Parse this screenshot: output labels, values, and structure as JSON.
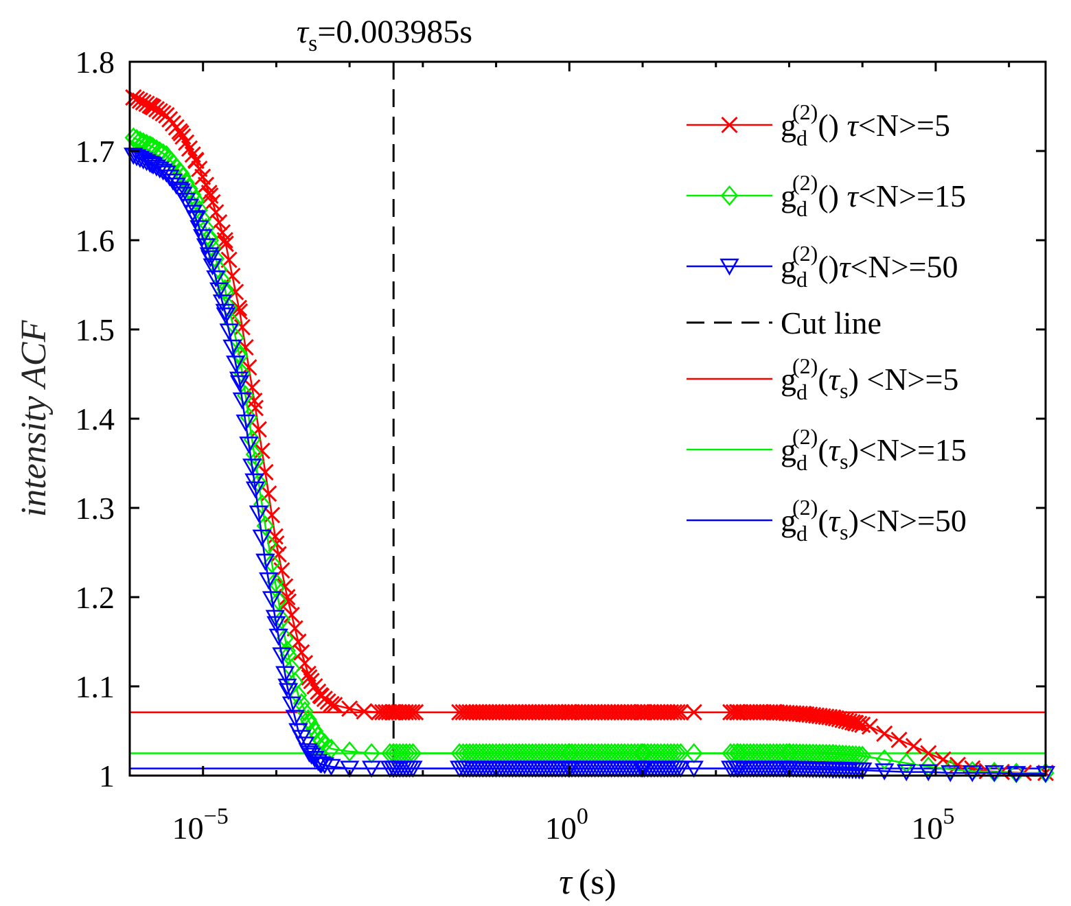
{
  "chart_data": {
    "type": "line",
    "title_prefix": "τ",
    "title_sub": "s",
    "title_value": "=0.003985s",
    "xlabel_symbol": "τ",
    "xlabel_unit": "(s)",
    "ylabel": "intensity ACF",
    "x_scale": "log10",
    "xlim_exp": [
      -6,
      6.5
    ],
    "ylim": [
      1,
      1.8
    ],
    "x_ticks": [
      {
        "base": "10",
        "exp": "−5",
        "value_exp": -5
      },
      {
        "base": "10",
        "exp": "0",
        "value_exp": 0
      },
      {
        "base": "10",
        "exp": "5",
        "value_exp": 5
      }
    ],
    "y_ticks": [
      {
        "label": "1",
        "value": 1.0
      },
      {
        "label": "1.1",
        "value": 1.1
      },
      {
        "label": "1.2",
        "value": 1.2
      },
      {
        "label": "1.3",
        "value": 1.3
      },
      {
        "label": "1.4",
        "value": 1.4
      },
      {
        "label": "1.5",
        "value": 1.5
      },
      {
        "label": "1.6",
        "value": 1.6
      },
      {
        "label": "1.7",
        "value": 1.7
      },
      {
        "label": "1.8",
        "value": 1.8
      }
    ],
    "cut_line_x": 0.003985,
    "legend_position": "top-right",
    "series": [
      {
        "name": "g_d^(2)(τ) <N>=5",
        "legend": {
          "pre": "(τ) ",
          "post": "<N>=5",
          "tau_sub": ""
        },
        "kind": "markers",
        "marker": "x",
        "color": "#ff0000",
        "points": [
          [
            -5.95,
            1.76
          ],
          [
            -5.7,
            1.75
          ],
          [
            -5.5,
            1.74
          ],
          [
            -5.3,
            1.72
          ],
          [
            -5.1,
            1.69
          ],
          [
            -4.9,
            1.65
          ],
          [
            -4.7,
            1.6
          ],
          [
            -4.5,
            1.52
          ],
          [
            -4.3,
            1.42
          ],
          [
            -4.15,
            1.34
          ],
          [
            -4.0,
            1.26
          ],
          [
            -3.85,
            1.2
          ],
          [
            -3.7,
            1.15
          ],
          [
            -3.55,
            1.11
          ],
          [
            -3.4,
            1.09
          ],
          [
            -3.25,
            1.08
          ],
          [
            -3.0,
            1.075
          ],
          [
            -2.8,
            1.072
          ],
          [
            -2.6,
            1.071
          ],
          [
            -2.4,
            1.071
          ],
          [
            -1.5,
            1.071
          ],
          [
            0,
            1.071
          ],
          [
            1.0,
            1.071
          ],
          [
            1.7,
            1.071
          ],
          [
            2.3,
            1.071
          ],
          [
            2.8,
            1.071
          ],
          [
            3.2,
            1.069
          ],
          [
            3.6,
            1.065
          ],
          [
            3.9,
            1.059
          ],
          [
            4.1,
            1.055
          ],
          [
            4.3,
            1.047
          ],
          [
            4.5,
            1.04
          ],
          [
            4.7,
            1.033
          ],
          [
            4.9,
            1.025
          ],
          [
            5.1,
            1.018
          ],
          [
            5.3,
            1.012
          ],
          [
            5.5,
            1.008
          ],
          [
            5.7,
            1.005
          ],
          [
            5.9,
            1.004
          ],
          [
            6.2,
            1.003
          ],
          [
            6.5,
            1.003
          ]
        ],
        "dense_ranges": [
          [
            -5.95,
            -3.2
          ],
          [
            -2.55,
            -2.1
          ],
          [
            -1.45,
            1.55
          ],
          [
            2.2,
            4.0
          ]
        ]
      },
      {
        "name": "g_d^(2)(τ) <N>=15",
        "legend": {
          "pre": "(τ) ",
          "post": "<N>=15",
          "tau_sub": ""
        },
        "kind": "markers",
        "marker": "diamond",
        "color": "#00ee00",
        "points": [
          [
            -5.95,
            1.715
          ],
          [
            -5.7,
            1.705
          ],
          [
            -5.5,
            1.695
          ],
          [
            -5.3,
            1.675
          ],
          [
            -5.1,
            1.645
          ],
          [
            -4.9,
            1.6
          ],
          [
            -4.7,
            1.545
          ],
          [
            -4.5,
            1.47
          ],
          [
            -4.3,
            1.36
          ],
          [
            -4.15,
            1.28
          ],
          [
            -4.0,
            1.21
          ],
          [
            -3.85,
            1.14
          ],
          [
            -3.7,
            1.09
          ],
          [
            -3.55,
            1.06
          ],
          [
            -3.4,
            1.04
          ],
          [
            -3.25,
            1.03
          ],
          [
            -3.0,
            1.027
          ],
          [
            -2.7,
            1.025
          ],
          [
            -2.4,
            1.025
          ],
          [
            -1.5,
            1.025
          ],
          [
            0,
            1.025
          ],
          [
            1.0,
            1.025
          ],
          [
            1.7,
            1.025
          ],
          [
            2.3,
            1.025
          ],
          [
            3.0,
            1.025
          ],
          [
            3.6,
            1.024
          ],
          [
            4.0,
            1.022
          ],
          [
            4.3,
            1.018
          ],
          [
            4.6,
            1.014
          ],
          [
            4.9,
            1.01
          ],
          [
            5.2,
            1.007
          ],
          [
            5.5,
            1.005
          ],
          [
            5.8,
            1.004
          ],
          [
            6.1,
            1.003
          ],
          [
            6.5,
            1.003
          ]
        ],
        "dense_ranges": [
          [
            -5.95,
            -3.3
          ],
          [
            -2.45,
            -2.1
          ],
          [
            -1.45,
            1.55
          ],
          [
            2.2,
            4.0
          ]
        ]
      },
      {
        "name": "g_d^(2)(τ)<N>=50",
        "legend": {
          "pre": "(τ)",
          "post": "<N>=50",
          "tau_sub": ""
        },
        "kind": "markers",
        "marker": "triangle-down",
        "color": "#0000ff",
        "points": [
          [
            -5.95,
            1.695
          ],
          [
            -5.7,
            1.685
          ],
          [
            -5.5,
            1.675
          ],
          [
            -5.3,
            1.655
          ],
          [
            -5.1,
            1.625
          ],
          [
            -4.9,
            1.58
          ],
          [
            -4.7,
            1.52
          ],
          [
            -4.5,
            1.44
          ],
          [
            -4.3,
            1.33
          ],
          [
            -4.15,
            1.24
          ],
          [
            -4.0,
            1.17
          ],
          [
            -3.85,
            1.1
          ],
          [
            -3.7,
            1.05
          ],
          [
            -3.55,
            1.025
          ],
          [
            -3.4,
            1.013
          ],
          [
            -3.25,
            1.01
          ],
          [
            -3.0,
            1.008
          ],
          [
            -2.7,
            1.008
          ],
          [
            -2.4,
            1.008
          ],
          [
            -1.5,
            1.008
          ],
          [
            0,
            1.008
          ],
          [
            1.0,
            1.008
          ],
          [
            1.7,
            1.008
          ],
          [
            2.3,
            1.008
          ],
          [
            3.0,
            1.008
          ],
          [
            3.6,
            1.007
          ],
          [
            4.0,
            1.006
          ],
          [
            4.3,
            1.005
          ],
          [
            4.6,
            1.004
          ],
          [
            4.9,
            1.004
          ],
          [
            5.2,
            1.003
          ],
          [
            5.5,
            1.003
          ],
          [
            5.8,
            1.003
          ],
          [
            6.1,
            1.002
          ],
          [
            6.5,
            1.002
          ]
        ],
        "dense_ranges": [
          [
            -5.95,
            -3.3
          ],
          [
            -2.45,
            -2.1
          ],
          [
            -1.45,
            1.55
          ],
          [
            2.2,
            4.0
          ]
        ]
      },
      {
        "name": "Cut line",
        "legend": {
          "text": "Cut line"
        },
        "kind": "dashed-vertical",
        "color": "#000000"
      },
      {
        "name": "g_d^(2)(τ_s) <N>=5",
        "legend": {
          "pre": "(τ",
          "post": ") <N>=5",
          "tau_sub": "s"
        },
        "kind": "hline",
        "value": 1.071,
        "color": "#ff0000"
      },
      {
        "name": "g_d^(2)(τ_s)<N>=15",
        "legend": {
          "pre": "(τ",
          "post": ")<N>=15",
          "tau_sub": "s"
        },
        "kind": "hline",
        "value": 1.025,
        "color": "#00ee00"
      },
      {
        "name": "g_d^(2)(τ_s)<N>=50",
        "legend": {
          "pre": "(τ",
          "post": ")<N>=50",
          "tau_sub": "s"
        },
        "kind": "hline",
        "value": 1.008,
        "color": "#0000ff"
      }
    ],
    "legend_g": "g",
    "legend_sub": "d",
    "legend_sup": "(2)"
  }
}
